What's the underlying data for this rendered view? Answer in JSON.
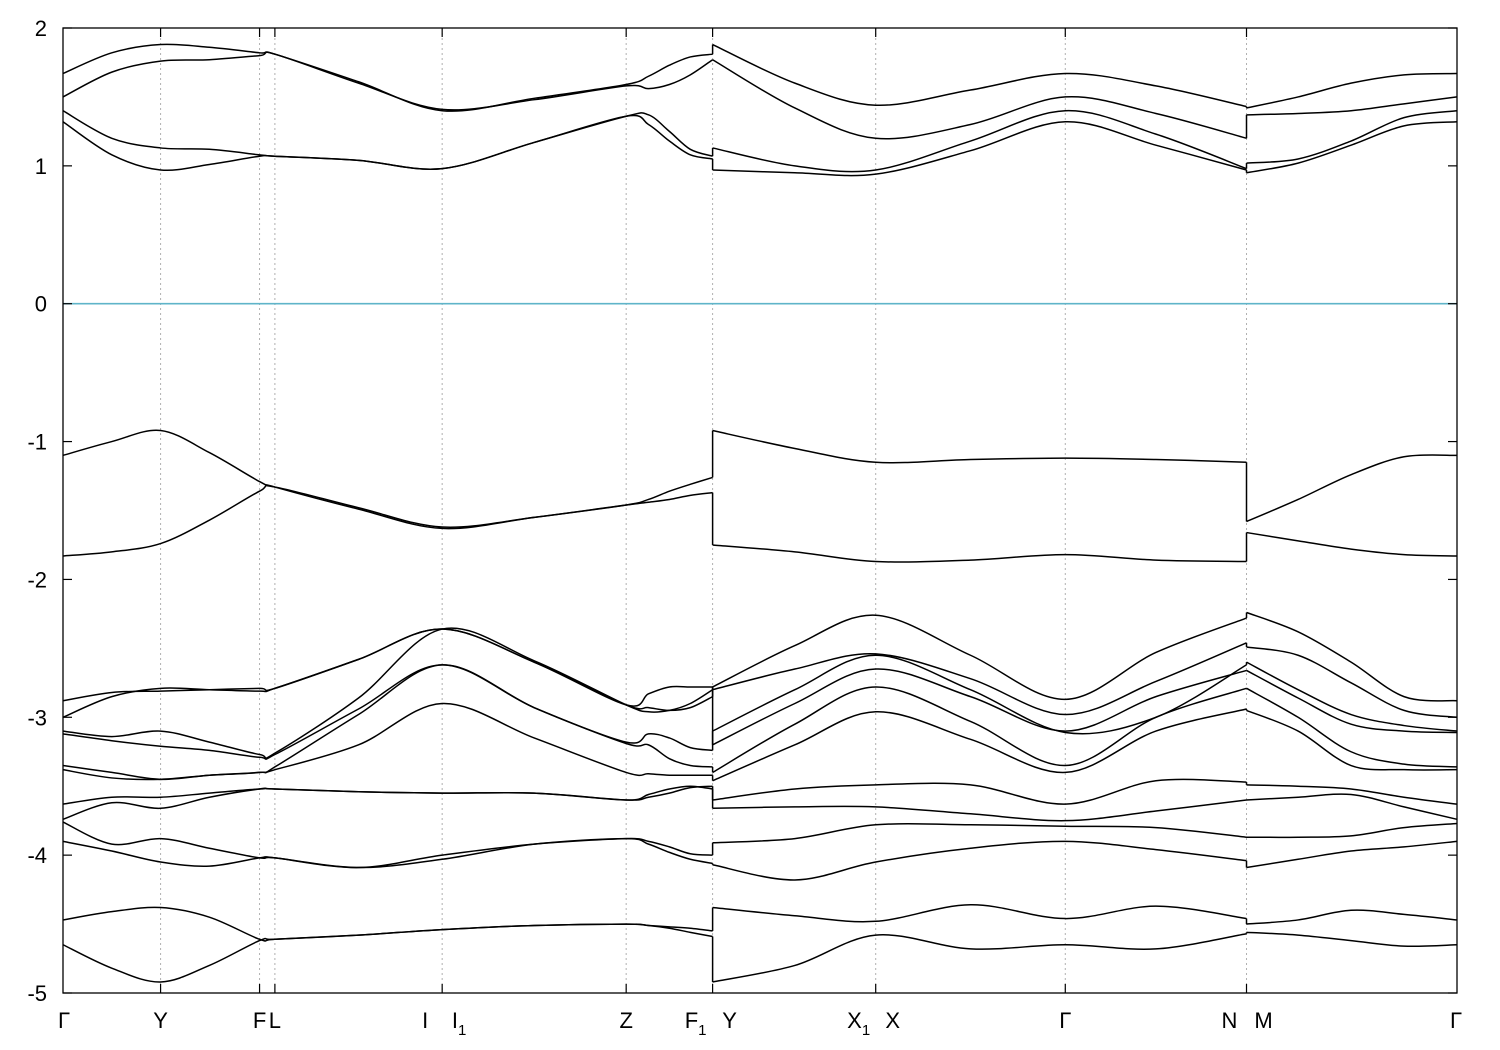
{
  "chart_data": {
    "type": "line",
    "title": "",
    "xlabel": "",
    "ylabel": "",
    "ylim": [
      -5,
      2
    ],
    "yticks": [
      {
        "value": 2,
        "label": "2"
      },
      {
        "value": 1,
        "label": "1"
      },
      {
        "value": 0,
        "label": "0"
      },
      {
        "value": -1,
        "label": "-1"
      },
      {
        "value": -2,
        "label": "-2"
      },
      {
        "value": -3,
        "label": "-3"
      },
      {
        "value": -4,
        "label": "-4"
      },
      {
        "value": -5,
        "label": "-5"
      }
    ],
    "kpoints": [
      {
        "pos": 0.0,
        "label": "Γ",
        "sub": "",
        "grid": false
      },
      {
        "pos": 0.07,
        "label": "Y",
        "sub": "",
        "grid": true
      },
      {
        "pos": 0.141,
        "label": "F",
        "sub": "",
        "grid": true
      },
      {
        "pos": 0.152,
        "label": "L",
        "sub": "",
        "grid": true
      },
      {
        "pos": 0.272,
        "label": "I",
        "sub": "",
        "grid": true
      },
      {
        "pos": 0.272,
        "label": "I",
        "sub": "1",
        "grid": false
      },
      {
        "pos": 0.404,
        "label": "Z",
        "sub": "",
        "grid": true
      },
      {
        "pos": 0.466,
        "label": "F",
        "sub": "1",
        "grid": true
      },
      {
        "pos": 0.466,
        "label": "Y",
        "sub": "",
        "grid": false
      },
      {
        "pos": 0.583,
        "label": "X",
        "sub": "1",
        "grid": true
      },
      {
        "pos": 0.583,
        "label": "X",
        "sub": "",
        "grid": false
      },
      {
        "pos": 0.719,
        "label": "Γ",
        "sub": "",
        "grid": true
      },
      {
        "pos": 0.849,
        "label": "N",
        "sub": "",
        "grid": true
      },
      {
        "pos": 0.849,
        "label": "M",
        "sub": "",
        "grid": false
      },
      {
        "pos": 1.0,
        "label": "Γ",
        "sub": "",
        "grid": false
      }
    ],
    "fermi_level": {
      "value": 0,
      "color": "#5fb4c9"
    },
    "line_color": "#000000",
    "grid": "dashed-vertical",
    "segments": [
      {
        "name": "Γ-Y-F-L-I-I1-Z-F1",
        "x": [
          0.0,
          0.035,
          0.07,
          0.105,
          0.141,
          0.152,
          0.212,
          0.272,
          0.338,
          0.404,
          0.42,
          0.435,
          0.45,
          0.466
        ],
        "bands": [
          [
            -4.65,
            -4.82,
            -4.92,
            -4.8,
            -4.62,
            -4.61,
            -4.58,
            -4.54,
            -4.51,
            -4.5,
            -4.51,
            -4.53,
            -4.56,
            -4.59
          ],
          [
            -4.47,
            -4.41,
            -4.38,
            -4.45,
            -4.61,
            -4.61,
            -4.58,
            -4.54,
            -4.51,
            -4.5,
            -4.51,
            -4.52,
            -4.53,
            -4.55
          ],
          [
            -3.9,
            -3.97,
            -4.05,
            -4.08,
            -4.02,
            -4.02,
            -4.09,
            -4.03,
            -3.92,
            -3.88,
            -3.92,
            -3.98,
            -4.03,
            -4.06
          ],
          [
            -3.76,
            -3.92,
            -3.88,
            -3.95,
            -4.02,
            -4.02,
            -4.09,
            -4.0,
            -3.92,
            -3.88,
            -3.9,
            -3.94,
            -3.99,
            -4.0
          ],
          [
            -3.74,
            -3.62,
            -3.66,
            -3.58,
            -3.52,
            -3.52,
            -3.54,
            -3.55,
            -3.55,
            -3.6,
            -3.56,
            -3.52,
            -3.5,
            -3.52
          ],
          [
            -3.63,
            -3.58,
            -3.58,
            -3.55,
            -3.52,
            -3.52,
            -3.54,
            -3.55,
            -3.55,
            -3.6,
            -3.58,
            -3.55,
            -3.51,
            -3.5
          ],
          [
            -3.35,
            -3.4,
            -3.45,
            -3.42,
            -3.4,
            -3.38,
            -3.2,
            -2.9,
            -3.15,
            -3.4,
            -3.41,
            -3.42,
            -3.42,
            -3.42
          ],
          [
            -3.38,
            -3.44,
            -3.45,
            -3.42,
            -3.4,
            -3.36,
            -2.98,
            -2.62,
            -2.93,
            -3.19,
            -3.2,
            -3.3,
            -3.35,
            -3.36
          ],
          [
            -3.1,
            -3.14,
            -3.1,
            -3.18,
            -3.27,
            -3.26,
            -2.86,
            -2.36,
            -2.59,
            -2.91,
            -2.96,
            -2.95,
            -2.9,
            -2.8
          ],
          [
            -3.12,
            -3.17,
            -3.21,
            -3.24,
            -3.29,
            -3.27,
            -2.94,
            -2.62,
            -2.93,
            -3.18,
            -3.12,
            -3.15,
            -3.22,
            -3.24
          ],
          [
            -3.0,
            -2.85,
            -2.79,
            -2.8,
            -2.81,
            -2.79,
            -2.58,
            -2.36,
            -2.6,
            -2.91,
            -2.83,
            -2.78,
            -2.78,
            -2.78
          ],
          [
            -2.88,
            -2.82,
            -2.81,
            -2.8,
            -2.79,
            -2.79,
            -2.58,
            -2.36,
            -2.6,
            -2.91,
            -2.93,
            -2.95,
            -2.93,
            -2.85
          ],
          [
            -1.83,
            -1.8,
            -1.74,
            -1.57,
            -1.36,
            -1.33,
            -1.48,
            -1.62,
            -1.55,
            -1.46,
            -1.44,
            -1.42,
            -1.39,
            -1.37
          ],
          [
            -1.1,
            -1.0,
            -0.92,
            -1.08,
            -1.29,
            -1.33,
            -1.49,
            -1.63,
            -1.55,
            -1.46,
            -1.42,
            -1.36,
            -1.31,
            -1.26
          ],
          [
            1.32,
            1.08,
            0.97,
            1.01,
            1.07,
            1.07,
            1.04,
            0.98,
            1.17,
            1.36,
            1.3,
            1.18,
            1.08,
            1.05
          ],
          [
            1.4,
            1.2,
            1.13,
            1.12,
            1.08,
            1.07,
            1.04,
            0.98,
            1.17,
            1.36,
            1.37,
            1.25,
            1.12,
            1.07
          ],
          [
            1.5,
            1.68,
            1.76,
            1.77,
            1.8,
            1.81,
            1.6,
            1.41,
            1.48,
            1.58,
            1.56,
            1.59,
            1.66,
            1.77
          ],
          [
            1.67,
            1.82,
            1.88,
            1.86,
            1.82,
            1.81,
            1.61,
            1.4,
            1.49,
            1.59,
            1.65,
            1.73,
            1.79,
            1.81
          ]
        ]
      },
      {
        "name": "Y-X1-X-Γ-N",
        "x": [
          0.466,
          0.525,
          0.583,
          0.651,
          0.719,
          0.784,
          0.849
        ],
        "bands": [
          [
            -4.92,
            -4.8,
            -4.58,
            -4.68,
            -4.65,
            -4.68,
            -4.57
          ],
          [
            -4.38,
            -4.44,
            -4.48,
            -4.36,
            -4.46,
            -4.37,
            -4.46
          ],
          [
            -4.07,
            -4.18,
            -4.05,
            -3.95,
            -3.9,
            -3.96,
            -4.04
          ],
          [
            -3.91,
            -3.88,
            -3.78,
            -3.78,
            -3.79,
            -3.8,
            -3.87
          ],
          [
            -3.66,
            -3.65,
            -3.65,
            -3.7,
            -3.75,
            -3.68,
            -3.6
          ],
          [
            -3.6,
            -3.52,
            -3.49,
            -3.49,
            -3.63,
            -3.46,
            -3.47
          ],
          [
            -3.46,
            -3.2,
            -2.96,
            -3.16,
            -3.4,
            -3.1,
            -2.94
          ],
          [
            -3.4,
            -3.05,
            -2.78,
            -3.03,
            -3.35,
            -3.0,
            -2.79
          ],
          [
            -3.2,
            -2.9,
            -2.65,
            -2.85,
            -3.1,
            -2.85,
            -2.66
          ],
          [
            -3.1,
            -2.8,
            -2.55,
            -2.8,
            -3.11,
            -3.0,
            -2.62
          ],
          [
            -2.8,
            -2.65,
            -2.54,
            -2.72,
            -2.98,
            -2.74,
            -2.46
          ],
          [
            -2.78,
            -2.48,
            -2.26,
            -2.55,
            -2.87,
            -2.53,
            -2.28
          ],
          [
            -1.75,
            -1.8,
            -1.87,
            -1.86,
            -1.82,
            -1.86,
            -1.87
          ],
          [
            -0.92,
            -1.05,
            -1.15,
            -1.13,
            -1.12,
            -1.13,
            -1.15
          ],
          [
            0.97,
            0.95,
            0.94,
            1.11,
            1.32,
            1.15,
            0.97
          ],
          [
            1.13,
            1.0,
            0.97,
            1.18,
            1.4,
            1.23,
            0.98
          ],
          [
            1.77,
            1.42,
            1.2,
            1.3,
            1.5,
            1.38,
            1.2
          ],
          [
            1.88,
            1.6,
            1.44,
            1.55,
            1.67,
            1.58,
            1.43
          ]
        ]
      },
      {
        "name": "M-Γ",
        "x": [
          0.849,
          0.886,
          0.924,
          0.962,
          1.0
        ],
        "bands": [
          [
            -4.56,
            -4.58,
            -4.62,
            -4.66,
            -4.65
          ],
          [
            -4.5,
            -4.47,
            -4.4,
            -4.43,
            -4.47
          ],
          [
            -4.09,
            -4.03,
            -3.97,
            -3.94,
            -3.9
          ],
          [
            -3.87,
            -3.87,
            -3.86,
            -3.8,
            -3.77
          ],
          [
            -3.6,
            -3.58,
            -3.56,
            -3.65,
            -3.74
          ],
          [
            -3.49,
            -3.5,
            -3.52,
            -3.58,
            -3.63
          ],
          [
            -2.95,
            -3.1,
            -3.35,
            -3.38,
            -3.38
          ],
          [
            -2.79,
            -3.0,
            -3.25,
            -3.34,
            -3.36
          ],
          [
            -2.66,
            -2.86,
            -3.05,
            -3.1,
            -3.11
          ],
          [
            -2.6,
            -2.8,
            -2.98,
            -3.06,
            -3.1
          ],
          [
            -2.49,
            -2.55,
            -2.75,
            -2.95,
            -3.0
          ],
          [
            -2.24,
            -2.38,
            -2.6,
            -2.85,
            -2.88
          ],
          [
            -1.66,
            -1.72,
            -1.78,
            -1.82,
            -1.83
          ],
          [
            -1.58,
            -1.42,
            -1.24,
            -1.11,
            -1.1
          ],
          [
            0.95,
            1.02,
            1.15,
            1.29,
            1.32
          ],
          [
            1.02,
            1.05,
            1.18,
            1.35,
            1.4
          ],
          [
            1.37,
            1.38,
            1.4,
            1.45,
            1.5
          ],
          [
            1.42,
            1.5,
            1.6,
            1.66,
            1.67
          ]
        ]
      }
    ]
  }
}
